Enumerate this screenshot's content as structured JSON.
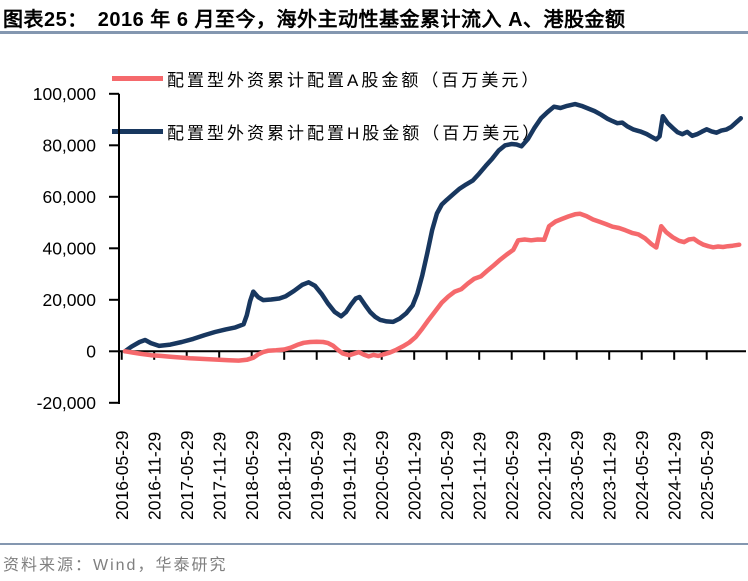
{
  "header": {
    "figure_label": "图表25：",
    "title": "2016 年 6 月至今，海外主动性基金累计流入 A、港股金额"
  },
  "footer": {
    "source": "资料来源：Wind，华泰研究"
  },
  "colors": {
    "a_share": "#F5696C",
    "h_share": "#18375F",
    "divider": "#8497B0",
    "source_text": "#7F7F7F",
    "axis": "#000000"
  },
  "legend": [
    {
      "key": "a_share",
      "label": "配置型外资累计配置A股金额（百万美元）",
      "color": "#F5696C"
    },
    {
      "key": "h_share",
      "label": "配置型外资累计配置H股金额（百万美元）",
      "color": "#18375F"
    }
  ],
  "chart_data": {
    "type": "line",
    "title": "2016 年 6 月至今，海外主动性基金累计流入 A、港股金额",
    "y_unit": "百万美元",
    "ylim": [
      -20000,
      100000
    ],
    "y_ticks": [
      -20000,
      0,
      20000,
      40000,
      60000,
      80000,
      100000
    ],
    "x_unit": "half-years since 2016-05-29",
    "x_tick_labels": [
      "2016-05-29",
      "2016-11-29",
      "2017-05-29",
      "2017-11-29",
      "2018-05-29",
      "2018-11-29",
      "2019-05-29",
      "2019-11-29",
      "2020-05-29",
      "2020-11-29",
      "2021-05-29",
      "2021-11-29",
      "2022-05-29",
      "2022-11-29",
      "2023-05-29",
      "2023-11-29",
      "2024-05-29",
      "2024-11-29",
      "2025-05-29"
    ],
    "grid": false,
    "legend_position": "top-left",
    "series": [
      {
        "name": "配置型外资累计配置H股金额（百万美元）",
        "key": "h_share",
        "color": "#18375F",
        "points": [
          [
            0.1,
            0
          ],
          [
            0.3,
            1800
          ],
          [
            0.55,
            3600
          ],
          [
            0.72,
            4400
          ],
          [
            0.9,
            3200
          ],
          [
            1.15,
            2100
          ],
          [
            1.5,
            2600
          ],
          [
            1.85,
            3600
          ],
          [
            2.2,
            4800
          ],
          [
            2.55,
            6300
          ],
          [
            2.87,
            7500
          ],
          [
            3.2,
            8500
          ],
          [
            3.5,
            9300
          ],
          [
            3.75,
            10500
          ],
          [
            3.85,
            14000
          ],
          [
            3.95,
            19500
          ],
          [
            4.05,
            23200
          ],
          [
            4.2,
            21000
          ],
          [
            4.35,
            19900
          ],
          [
            4.6,
            20100
          ],
          [
            4.85,
            20500
          ],
          [
            5.05,
            21400
          ],
          [
            5.3,
            23400
          ],
          [
            5.55,
            25800
          ],
          [
            5.75,
            26800
          ],
          [
            5.95,
            25400
          ],
          [
            6.15,
            22300
          ],
          [
            6.35,
            18500
          ],
          [
            6.55,
            15300
          ],
          [
            6.75,
            13600
          ],
          [
            6.9,
            15200
          ],
          [
            7.05,
            18000
          ],
          [
            7.2,
            20500
          ],
          [
            7.32,
            21100
          ],
          [
            7.5,
            17800
          ],
          [
            7.65,
            15200
          ],
          [
            7.8,
            13400
          ],
          [
            7.95,
            12200
          ],
          [
            8.15,
            11600
          ],
          [
            8.35,
            11400
          ],
          [
            8.55,
            12700
          ],
          [
            8.75,
            14700
          ],
          [
            8.95,
            17800
          ],
          [
            9.1,
            22500
          ],
          [
            9.25,
            29500
          ],
          [
            9.4,
            38000
          ],
          [
            9.55,
            47000
          ],
          [
            9.7,
            53500
          ],
          [
            9.85,
            57000
          ],
          [
            10.0,
            58800
          ],
          [
            10.2,
            61000
          ],
          [
            10.4,
            63200
          ],
          [
            10.6,
            64800
          ],
          [
            10.8,
            66300
          ],
          [
            11.0,
            69000
          ],
          [
            11.2,
            72000
          ],
          [
            11.4,
            74800
          ],
          [
            11.6,
            78000
          ],
          [
            11.8,
            80000
          ],
          [
            12.0,
            80500
          ],
          [
            12.15,
            80300
          ],
          [
            12.3,
            79600
          ],
          [
            12.5,
            82500
          ],
          [
            12.7,
            86800
          ],
          [
            12.9,
            90500
          ],
          [
            13.1,
            92900
          ],
          [
            13.3,
            95000
          ],
          [
            13.5,
            94500
          ],
          [
            13.7,
            95300
          ],
          [
            13.95,
            96000
          ],
          [
            14.15,
            95300
          ],
          [
            14.35,
            94300
          ],
          [
            14.55,
            93300
          ],
          [
            14.75,
            91900
          ],
          [
            14.95,
            90300
          ],
          [
            15.1,
            89400
          ],
          [
            15.25,
            88600
          ],
          [
            15.4,
            88800
          ],
          [
            15.55,
            87400
          ],
          [
            15.75,
            86100
          ],
          [
            15.95,
            85400
          ],
          [
            16.15,
            84400
          ],
          [
            16.3,
            83300
          ],
          [
            16.45,
            82300
          ],
          [
            16.55,
            83500
          ],
          [
            16.65,
            91300
          ],
          [
            16.8,
            88600
          ],
          [
            16.95,
            86800
          ],
          [
            17.1,
            85100
          ],
          [
            17.25,
            84300
          ],
          [
            17.4,
            85200
          ],
          [
            17.55,
            83700
          ],
          [
            17.7,
            84300
          ],
          [
            17.85,
            85300
          ],
          [
            18.0,
            86200
          ],
          [
            18.15,
            85400
          ],
          [
            18.3,
            84900
          ],
          [
            18.45,
            85700
          ],
          [
            18.6,
            86100
          ],
          [
            18.75,
            87100
          ],
          [
            18.9,
            88800
          ],
          [
            19.05,
            90500
          ]
        ]
      },
      {
        "name": "配置型外资累计配置A股金额（百万美元）",
        "key": "a_share",
        "color": "#F5696C",
        "points": [
          [
            0.1,
            0
          ],
          [
            0.35,
            -500
          ],
          [
            0.6,
            -1000
          ],
          [
            0.9,
            -1500
          ],
          [
            1.2,
            -1800
          ],
          [
            1.5,
            -2100
          ],
          [
            1.8,
            -2400
          ],
          [
            2.1,
            -2700
          ],
          [
            2.4,
            -2900
          ],
          [
            2.7,
            -3100
          ],
          [
            3.0,
            -3300
          ],
          [
            3.3,
            -3500
          ],
          [
            3.6,
            -3600
          ],
          [
            3.85,
            -3300
          ],
          [
            4.05,
            -2500
          ],
          [
            4.2,
            -1200
          ],
          [
            4.35,
            -300
          ],
          [
            4.5,
            200
          ],
          [
            4.75,
            400
          ],
          [
            5.0,
            700
          ],
          [
            5.2,
            1400
          ],
          [
            5.4,
            2500
          ],
          [
            5.6,
            3300
          ],
          [
            5.8,
            3600
          ],
          [
            6.0,
            3700
          ],
          [
            6.2,
            3600
          ],
          [
            6.35,
            3200
          ],
          [
            6.5,
            2200
          ],
          [
            6.65,
            600
          ],
          [
            6.8,
            -800
          ],
          [
            7.0,
            -1500
          ],
          [
            7.15,
            -900
          ],
          [
            7.3,
            -300
          ],
          [
            7.45,
            -1300
          ],
          [
            7.6,
            -2000
          ],
          [
            7.75,
            -1400
          ],
          [
            7.9,
            -1800
          ],
          [
            8.05,
            -1200
          ],
          [
            8.25,
            -500
          ],
          [
            8.45,
            600
          ],
          [
            8.65,
            1900
          ],
          [
            8.85,
            3400
          ],
          [
            9.05,
            5600
          ],
          [
            9.25,
            8800
          ],
          [
            9.45,
            12300
          ],
          [
            9.65,
            15600
          ],
          [
            9.85,
            18900
          ],
          [
            10.05,
            21300
          ],
          [
            10.25,
            23200
          ],
          [
            10.45,
            24100
          ],
          [
            10.65,
            26300
          ],
          [
            10.85,
            28200
          ],
          [
            11.05,
            29100
          ],
          [
            11.25,
            31300
          ],
          [
            11.45,
            33400
          ],
          [
            11.65,
            35600
          ],
          [
            11.85,
            37600
          ],
          [
            12.05,
            39400
          ],
          [
            12.2,
            43100
          ],
          [
            12.4,
            43400
          ],
          [
            12.6,
            43100
          ],
          [
            12.8,
            43400
          ],
          [
            13.0,
            43300
          ],
          [
            13.15,
            48600
          ],
          [
            13.35,
            50400
          ],
          [
            13.55,
            51400
          ],
          [
            13.75,
            52400
          ],
          [
            13.95,
            53200
          ],
          [
            14.1,
            53400
          ],
          [
            14.3,
            52500
          ],
          [
            14.5,
            51200
          ],
          [
            14.7,
            50300
          ],
          [
            14.9,
            49400
          ],
          [
            15.1,
            48400
          ],
          [
            15.3,
            47900
          ],
          [
            15.5,
            47000
          ],
          [
            15.7,
            46000
          ],
          [
            15.9,
            45400
          ],
          [
            16.1,
            43900
          ],
          [
            16.3,
            41600
          ],
          [
            16.45,
            40300
          ],
          [
            16.6,
            48600
          ],
          [
            16.75,
            46300
          ],
          [
            16.95,
            44300
          ],
          [
            17.15,
            42900
          ],
          [
            17.3,
            42400
          ],
          [
            17.45,
            43400
          ],
          [
            17.6,
            43700
          ],
          [
            17.75,
            42400
          ],
          [
            17.9,
            41400
          ],
          [
            18.05,
            40800
          ],
          [
            18.2,
            40400
          ],
          [
            18.35,
            40700
          ],
          [
            18.5,
            40500
          ],
          [
            18.65,
            40800
          ],
          [
            18.8,
            41000
          ],
          [
            19.0,
            41400
          ]
        ]
      }
    ]
  }
}
